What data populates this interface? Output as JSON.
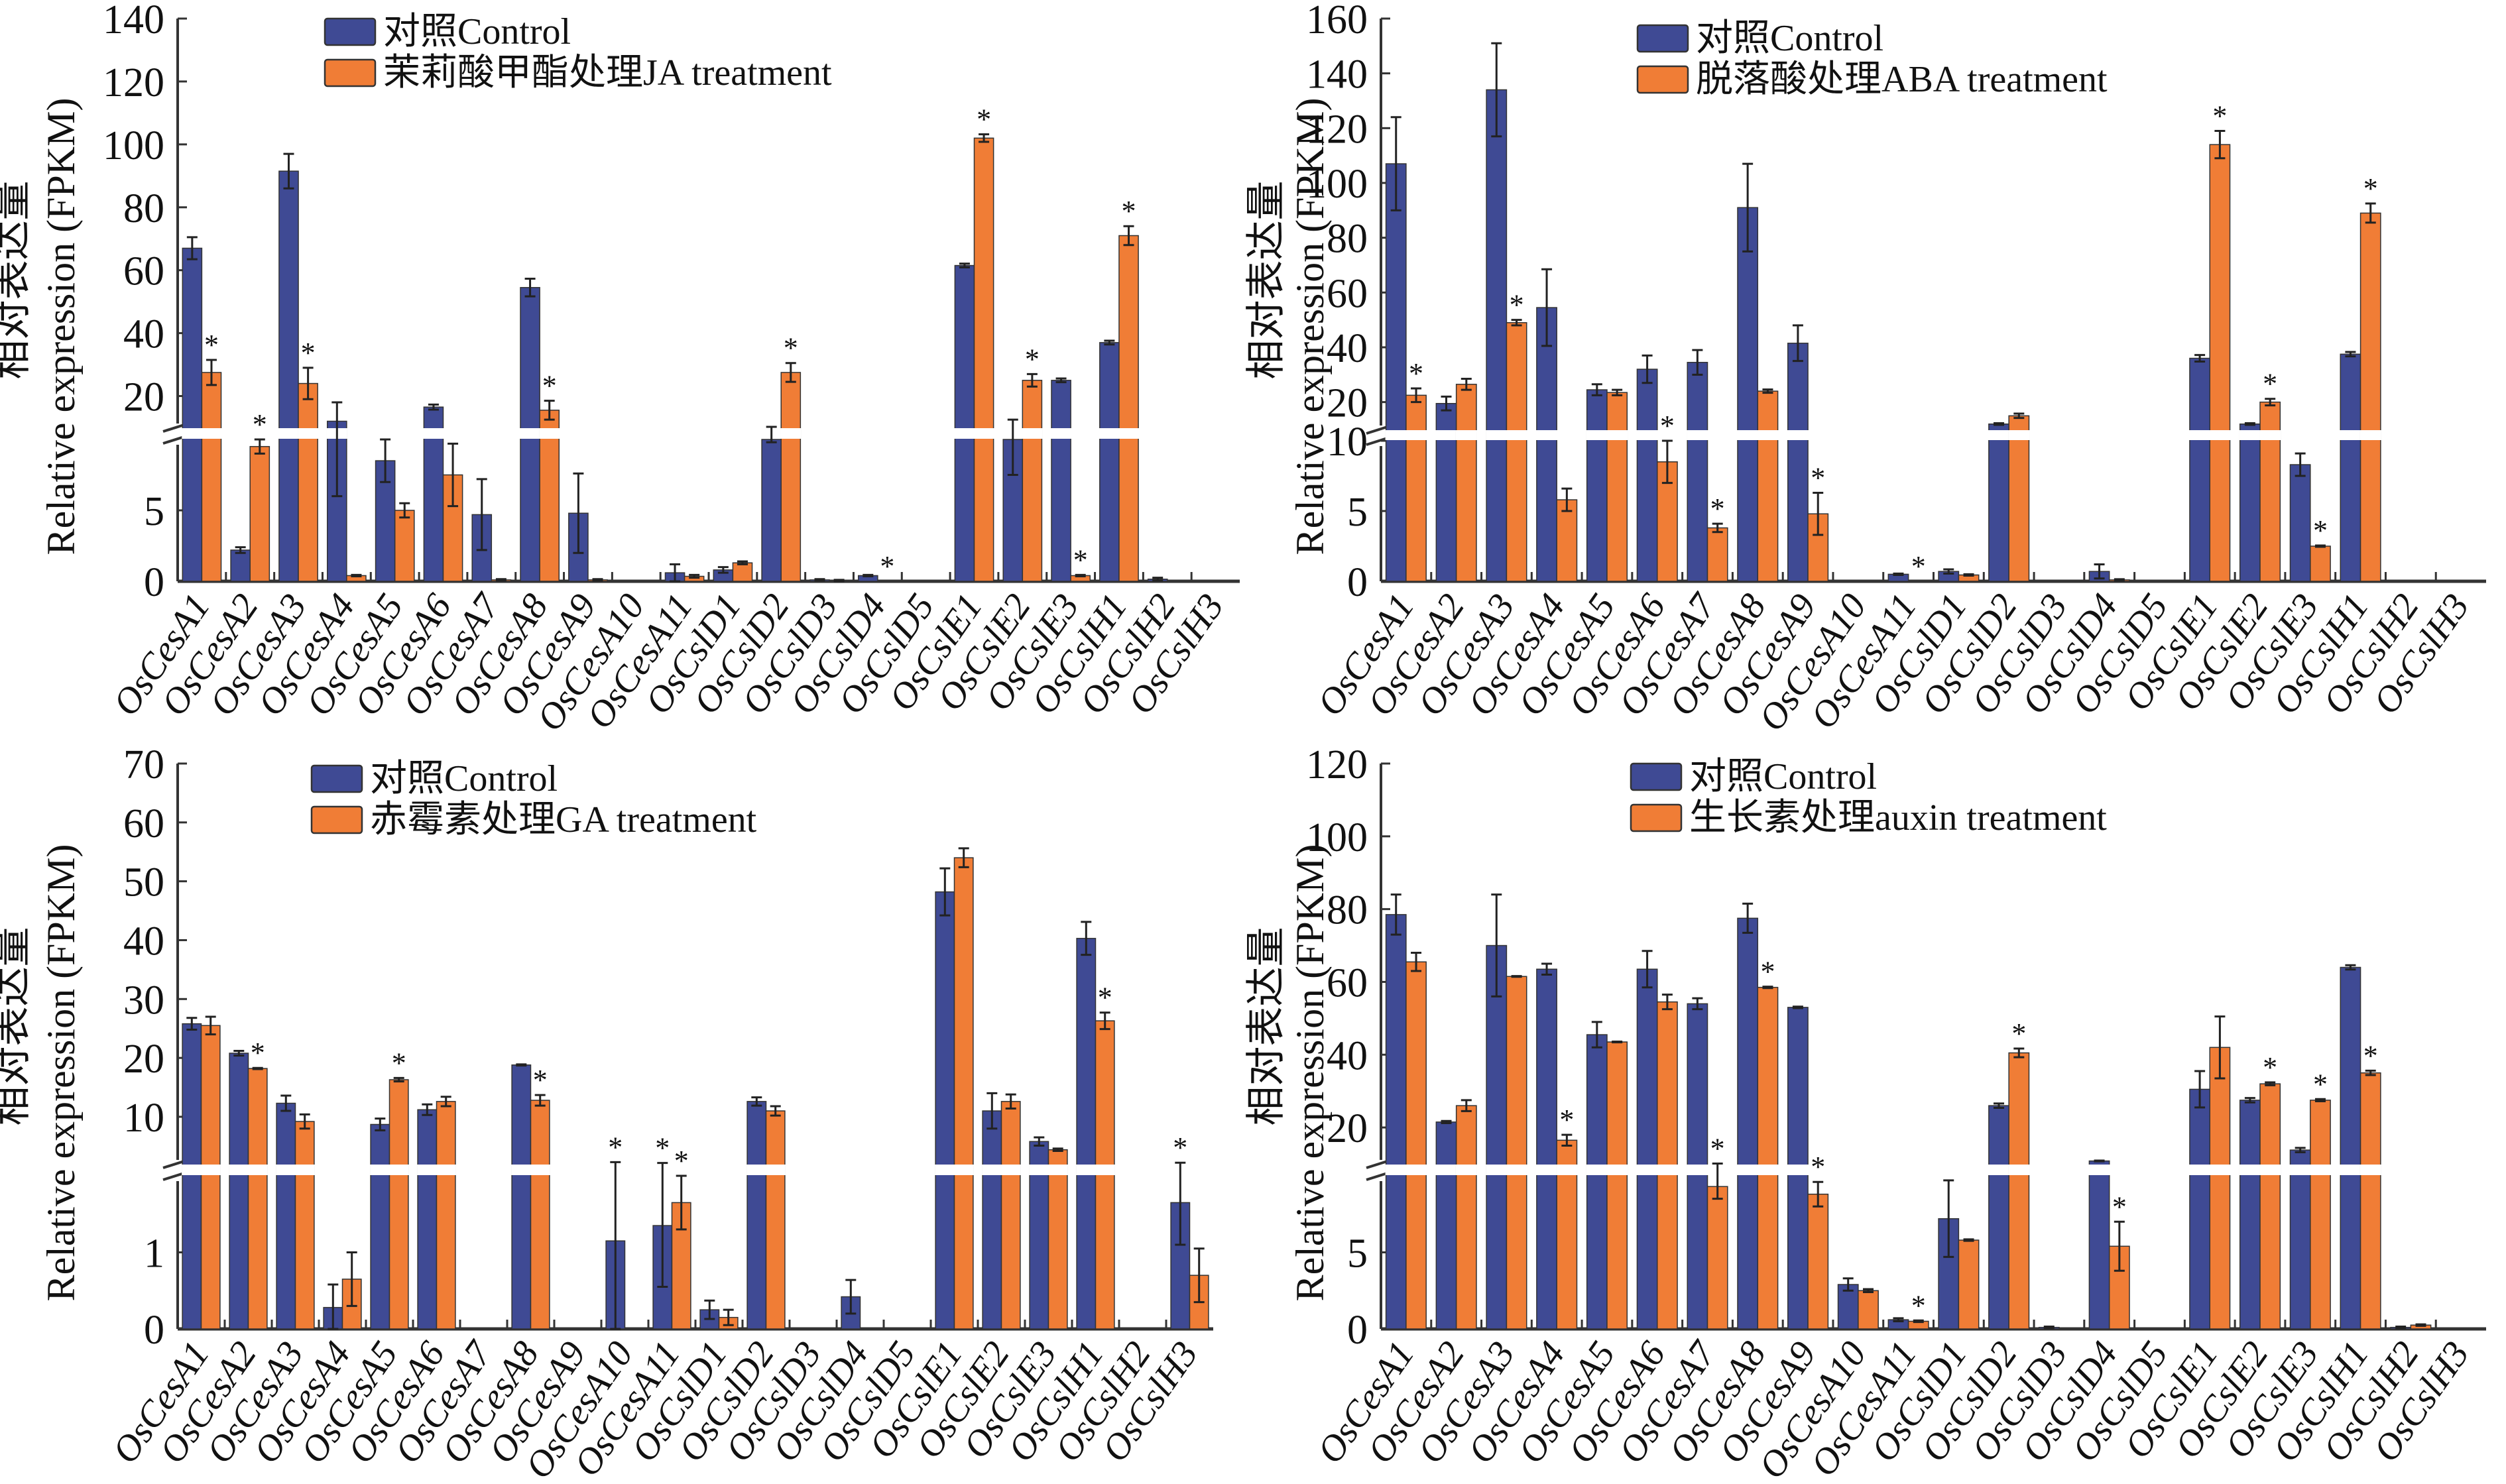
{
  "colors": {
    "control": "#3f4a94",
    "treatment": "#f07d36",
    "axis": "#333333"
  },
  "chart_data": [
    {
      "id": "ja",
      "type": "bar",
      "title": "",
      "ylabel_cn": "相对表达量",
      "ylabel_en": "Relative expression (FPKM)",
      "legend": [
        "对照Control",
        "茉莉酸甲酯处理JA treatment"
      ],
      "legend_position": "top-center",
      "categories": [
        "OsCesA1",
        "OsCesA2",
        "OsCesA3",
        "OsCesA4",
        "OsCesA5",
        "OsCesA6",
        "OsCesA7",
        "OsCesA8",
        "OsCesA9",
        "OsCesA10",
        "OsCesA11",
        "OsCslD1",
        "OsCslD2",
        "OsCslD3",
        "OsCslD4",
        "OsCslD5",
        "OsCslE1",
        "OsCslE2",
        "OsCslE3",
        "OsCslH1",
        "OsCslH2",
        "OsCslH3"
      ],
      "axis_break": {
        "lower": [
          0,
          10
        ],
        "upper": [
          10,
          140
        ]
      },
      "lower_ticks": [
        0,
        5
      ],
      "upper_ticks": [
        20,
        40,
        60,
        80,
        100,
        120,
        140
      ],
      "series": [
        {
          "name": "对照Control",
          "values": [
            67,
            2.2,
            91.5,
            12,
            8.5,
            16.5,
            4.7,
            54.5,
            4.8,
            0,
            0.6,
            0.8,
            10,
            0.1,
            0.4,
            0,
            61.5,
            10,
            25,
            37,
            0.15,
            0
          ],
          "errors": [
            3.5,
            0.2,
            5.5,
            6,
            1.5,
            0.8,
            2.5,
            2.8,
            2.8,
            0,
            0.6,
            0.2,
            0.2,
            0.05,
            0.05,
            0,
            0.6,
            2.5,
            0.6,
            0.6,
            0.1,
            0
          ]
        },
        {
          "name": "茉莉酸甲酯处理JA treatment",
          "values": [
            27.5,
            9.5,
            24,
            0.4,
            5,
            7.5,
            0.1,
            15.5,
            0.1,
            0,
            0.35,
            1.3,
            27.5,
            0.05,
            0,
            0,
            102,
            25,
            0.4,
            71,
            0,
            0
          ],
          "errors": [
            4,
            0.5,
            5,
            0.05,
            0.5,
            2.2,
            0.05,
            3,
            0.05,
            0,
            0.1,
            0.1,
            3,
            0.05,
            0,
            0,
            1.2,
            2,
            0.05,
            3,
            0,
            0
          ],
          "significant": [
            true,
            true,
            true,
            false,
            false,
            false,
            false,
            true,
            false,
            false,
            false,
            false,
            true,
            false,
            true,
            false,
            true,
            true,
            true,
            true,
            false,
            false
          ]
        }
      ]
    },
    {
      "id": "aba",
      "type": "bar",
      "title": "",
      "ylabel_cn": "相对表达量",
      "ylabel_en": "Relative expression (FPKM)",
      "legend": [
        "对照Control",
        "脱落酸处理ABA treatment"
      ],
      "legend_position": "top-right",
      "categories": [
        "OsCesA1",
        "OsCesA2",
        "OsCesA3",
        "OsCesA4",
        "OsCesA5",
        "OsCesA6",
        "OsCesA7",
        "OsCesA8",
        "OsCesA9",
        "OsCesA10",
        "OsCesA11",
        "OsCslD1",
        "OsCslD2",
        "OsCslD3",
        "OsCslD4",
        "OsCslD5",
        "OsCslE1",
        "OsCslE2",
        "OsCslE3",
        "OsCslH1",
        "OsCslH2",
        "OsCslH3"
      ],
      "axis_break": {
        "lower": [
          0,
          10
        ],
        "upper": [
          10,
          160
        ]
      },
      "lower_ticks": [
        0,
        5,
        10
      ],
      "upper_ticks": [
        20,
        40,
        60,
        80,
        100,
        120,
        140,
        160
      ],
      "series": [
        {
          "name": "对照Control",
          "values": [
            107,
            19.5,
            134,
            54.5,
            24.5,
            32,
            34.5,
            91,
            41.5,
            0,
            0.5,
            0.7,
            12,
            0,
            0.7,
            0,
            36,
            12,
            8.3,
            37.5,
            0,
            0
          ],
          "errors": [
            17,
            2.5,
            17,
            14,
            2,
            5,
            4.5,
            16,
            6.5,
            0,
            0.05,
            0.15,
            0.3,
            0,
            0.5,
            0,
            1.2,
            0.3,
            0.8,
            0.8,
            0,
            0
          ],
          "significant": [
            false,
            false,
            false,
            false,
            false,
            false,
            false,
            false,
            false,
            false,
            false,
            false,
            false,
            false,
            false,
            false,
            false,
            false,
            false,
            false,
            false,
            false
          ]
        },
        {
          "name": "脱落酸处理ABA treatment",
          "values": [
            22.5,
            26.5,
            49,
            5.8,
            23.5,
            8.5,
            3.8,
            24,
            4.8,
            0,
            0,
            0.45,
            15,
            0,
            0.1,
            0,
            114,
            20,
            2.5,
            89,
            0,
            0
          ],
          "errors": [
            2.5,
            2,
            1,
            0.8,
            1,
            1.5,
            0.3,
            0.6,
            1.5,
            0,
            0,
            0.05,
            0.8,
            0,
            0.05,
            0,
            5,
            1.2,
            0.05,
            3.5,
            0,
            0
          ],
          "significant": [
            true,
            false,
            true,
            false,
            false,
            true,
            true,
            false,
            true,
            false,
            true,
            false,
            false,
            false,
            false,
            false,
            true,
            true,
            true,
            true,
            false,
            false
          ]
        }
      ]
    },
    {
      "id": "ga",
      "type": "bar",
      "title": "",
      "ylabel_cn": "相对表达量",
      "ylabel_en": "Relative expression (FPKM)",
      "legend": [
        "对照Control",
        "赤霉素处理GA treatment"
      ],
      "legend_position": "top-center",
      "categories": [
        "OsCesA1",
        "OsCesA2",
        "OsCesA3",
        "OsCesA4",
        "OsCesA5",
        "OsCesA6",
        "OsCesA7",
        "OsCesA8",
        "OsCesA9",
        "OsCesA10",
        "OsCesA11",
        "OsCslD1",
        "OsCslD2",
        "OsCslD3",
        "OsCslD4",
        "OsCslD5",
        "OsCslE1",
        "OsCslE2",
        "OsCslE3",
        "OsCslH1",
        "OsCslH2",
        "OsCslH3"
      ],
      "axis_break": {
        "lower": [
          0,
          2
        ],
        "upper": [
          2,
          70
        ]
      },
      "lower_ticks": [
        0,
        1
      ],
      "upper_ticks": [
        10,
        20,
        30,
        40,
        50,
        60,
        70
      ],
      "series": [
        {
          "name": "对照Control",
          "values": [
            25.8,
            20.8,
            12.3,
            0.28,
            8.7,
            11.2,
            0,
            18.8,
            0,
            1.15,
            1.35,
            0.25,
            12.6,
            0,
            0.42,
            0,
            48.2,
            11,
            5.8,
            40.3,
            0,
            1.65
          ],
          "errors": [
            1,
            0.4,
            1.3,
            0.3,
            1,
            0.9,
            0,
            0.1,
            0,
            1.15,
            0.8,
            0.12,
            0.7,
            0,
            0.22,
            0,
            4,
            3,
            0.7,
            2.8,
            0,
            0.55
          ],
          "significant": [
            false,
            false,
            false,
            false,
            false,
            false,
            false,
            false,
            false,
            true,
            true,
            false,
            false,
            false,
            false,
            false,
            false,
            false,
            false,
            false,
            false,
            true
          ]
        },
        {
          "name": "赤霉素处理GA treatment",
          "values": [
            25.5,
            18.2,
            9.2,
            0.65,
            16.3,
            12.6,
            0,
            12.8,
            0,
            0,
            1.65,
            0.15,
            11,
            0,
            0,
            0,
            54,
            12.6,
            4.4,
            26.3,
            0,
            0.7
          ],
          "errors": [
            1.5,
            0.1,
            1.2,
            0.35,
            0.3,
            0.8,
            0,
            0.9,
            0,
            0,
            0.35,
            0.1,
            0.8,
            0,
            0,
            0,
            1.6,
            1.2,
            0.2,
            1.4,
            0,
            0.35
          ],
          "significant": [
            false,
            true,
            false,
            false,
            true,
            false,
            false,
            true,
            false,
            false,
            true,
            false,
            false,
            false,
            false,
            false,
            false,
            false,
            false,
            true,
            false,
            false
          ]
        }
      ]
    },
    {
      "id": "auxin",
      "type": "bar",
      "title": "",
      "ylabel_cn": "相对表达量",
      "ylabel_en": "Relative expression (FPKM)",
      "legend": [
        "对照Control",
        "生长素处理auxin treatment"
      ],
      "legend_position": "top-right",
      "categories": [
        "OsCesA1",
        "OsCesA2",
        "OsCesA3",
        "OsCesA4",
        "OsCesA5",
        "OsCesA6",
        "OsCesA7",
        "OsCesA8",
        "OsCesA9",
        "OsCesA10",
        "OsCesA11",
        "OsCslD1",
        "OsCslD2",
        "OsCslD3",
        "OsCslD4",
        "OsCslD5",
        "OsCslE1",
        "OsCslE2",
        "OsCslE3",
        "OsCslH1",
        "OsCslH2",
        "OsCslH3"
      ],
      "axis_break": {
        "lower": [
          0,
          10
        ],
        "upper": [
          10,
          120
        ]
      },
      "lower_ticks": [
        0,
        5
      ],
      "upper_ticks": [
        20,
        40,
        60,
        80,
        100,
        120
      ],
      "series": [
        {
          "name": "对照Control",
          "values": [
            78.5,
            21.5,
            70,
            63.5,
            45.5,
            63.5,
            54,
            77.5,
            53,
            2.9,
            0.6,
            7.2,
            26,
            0.1,
            10.8,
            0,
            30.5,
            27.5,
            13.8,
            64,
            0.1,
            0
          ],
          "errors": [
            5.5,
            0.3,
            14,
            1.5,
            3.5,
            5,
            1.5,
            4,
            0.2,
            0.4,
            0.1,
            2.5,
            0.6,
            0.05,
            0.1,
            0,
            5,
            0.6,
            0.6,
            0.6,
            0.05,
            0
          ],
          "significant": [
            false,
            false,
            false,
            false,
            false,
            false,
            false,
            false,
            false,
            false,
            false,
            false,
            false,
            false,
            false,
            false,
            false,
            false,
            false,
            false,
            false,
            false
          ]
        },
        {
          "name": "生长素处理auxin treatment",
          "values": [
            65.5,
            26,
            61.5,
            16.5,
            43.5,
            54.5,
            9.3,
            58.5,
            8.8,
            2.5,
            0.5,
            5.8,
            40.5,
            0,
            5.4,
            0,
            42,
            32,
            27.5,
            35,
            0.25,
            0
          ],
          "errors": [
            2.5,
            1.5,
            0.1,
            1.5,
            0.1,
            2,
            0.8,
            0.2,
            0.8,
            0.1,
            0.05,
            0.05,
            1.2,
            0,
            1.6,
            0,
            8.5,
            0.4,
            0.3,
            0.6,
            0.05,
            0
          ],
          "significant": [
            false,
            false,
            false,
            true,
            false,
            false,
            true,
            true,
            true,
            false,
            true,
            false,
            true,
            false,
            true,
            false,
            false,
            true,
            true,
            true,
            false,
            false
          ]
        }
      ]
    }
  ]
}
